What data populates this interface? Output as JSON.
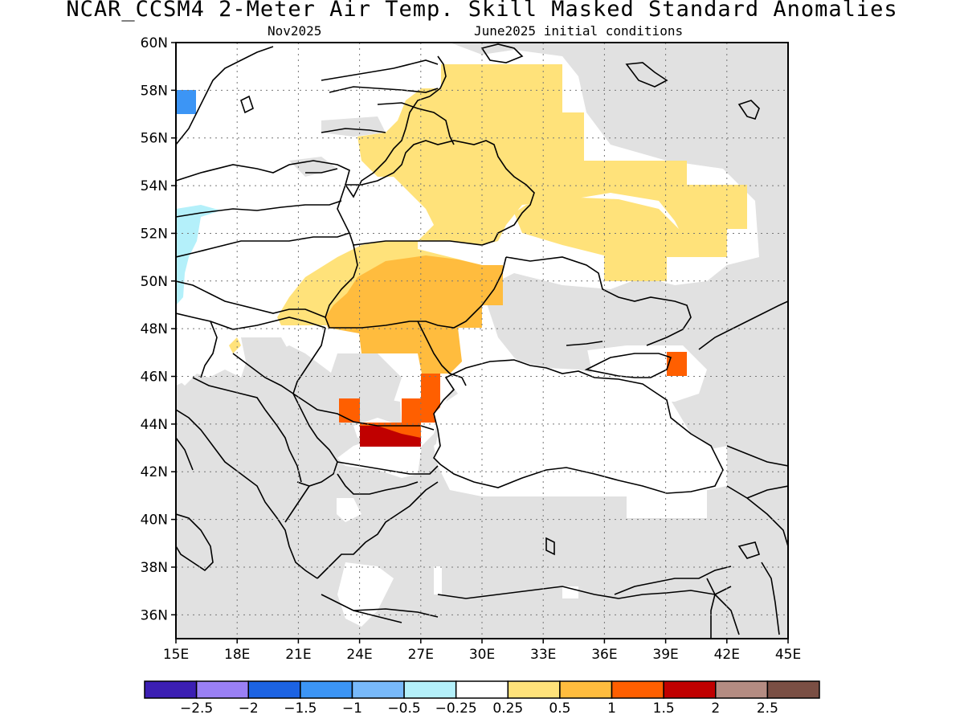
{
  "header": {
    "title": "NCAR_CCSM4 2-Meter Air Temp. Skill Masked Standard Anomalies",
    "valid_month": "Nov2025",
    "init": "June2025 initial conditions"
  },
  "map": {
    "lon_range": [
      15,
      45
    ],
    "lat_range": [
      35,
      60
    ],
    "lon_ticks": [
      "15E",
      "18E",
      "21E",
      "24E",
      "27E",
      "30E",
      "33E",
      "36E",
      "39E",
      "42E",
      "45E"
    ],
    "lat_ticks": [
      "60N",
      "58N",
      "56N",
      "54N",
      "52N",
      "50N",
      "48N",
      "46N",
      "44N",
      "42N",
      "40N",
      "38N",
      "36N"
    ],
    "colors": {
      "masked": "#e1e1e1",
      "frame": "#000000"
    }
  },
  "colorbar": {
    "colors": [
      "#3c1fb3",
      "#9a80f5",
      "#1c63e3",
      "#3c95f5",
      "#78b9fa",
      "#b4f0fa",
      "#ffffff",
      "#ffe27a",
      "#ffbc3e",
      "#ff5f00",
      "#c00000",
      "#b48c82",
      "#7a4f44"
    ],
    "labels": [
      "-2.5",
      "-2",
      "-1.5",
      "-1",
      "-0.5",
      "-0.25",
      "0.25",
      "0.5",
      "1",
      "1.5",
      "2",
      "2.5"
    ]
  }
}
